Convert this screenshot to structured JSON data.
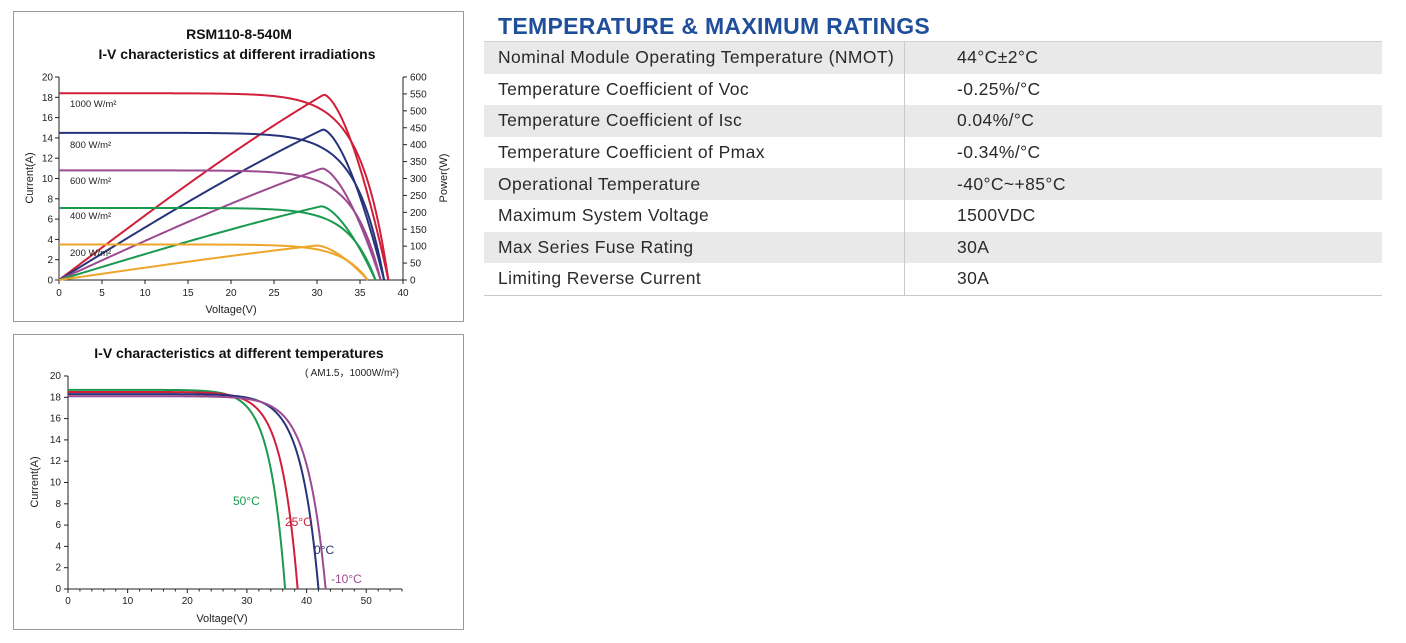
{
  "ratings": {
    "title": "TEMPERATURE & MAXIMUM RATINGS",
    "rows": [
      {
        "param": "Nominal Module Operating Temperature (NMOT)",
        "value": "44°C±2°C"
      },
      {
        "param": "Temperature Coefficient of Voc",
        "value": "-0.25%/°C"
      },
      {
        "param": "Temperature Coefficient of Isc",
        "value": "0.04%/°C"
      },
      {
        "param": "Temperature Coefficient of Pmax",
        "value": "-0.34%/°C"
      },
      {
        "param": "Operational Temperature",
        "value": "-40°C~+85°C"
      },
      {
        "param": "Maximum System Voltage",
        "value": "1500VDC"
      },
      {
        "param": "Max Series Fuse Rating",
        "value": "30A"
      },
      {
        "param": "Limiting Reverse Current",
        "value": "30A"
      }
    ]
  },
  "chart_data": [
    {
      "type": "line",
      "title": "RSM110-8-540M",
      "subtitle": "I-V characteristics at different irradiations",
      "xlabel": "Voltage(V)",
      "ylabel": "Current(A)",
      "y2label": "Power(W)",
      "xlim": [
        0,
        40
      ],
      "ylim": [
        0,
        20
      ],
      "y2lim": [
        0,
        600
      ],
      "xticks": [
        "0",
        "5",
        "10",
        "15",
        "20",
        "25",
        "30",
        "35",
        "40"
      ],
      "yticks": [
        "0",
        "2",
        "4",
        "6",
        "8",
        "10",
        "12",
        "14",
        "16",
        "18",
        "20"
      ],
      "y2ticks": [
        "0",
        "50",
        "100",
        "150",
        "200",
        "250",
        "300",
        "350",
        "400",
        "450",
        "500",
        "550",
        "600"
      ],
      "grid": false,
      "series": [
        {
          "name": "1000 W/m²",
          "color": "#d11f3a",
          "isc": 18.4,
          "voc": 38.3,
          "pmax": 548,
          "vmp": 30.8
        },
        {
          "name": "800 W/m²",
          "color": "#27337a",
          "isc": 14.5,
          "voc": 37.8,
          "pmax": 445,
          "vmp": 30.7
        },
        {
          "name": "600 W/m²",
          "color": "#9b4a91",
          "isc": 10.8,
          "voc": 37.4,
          "pmax": 330,
          "vmp": 30.6
        },
        {
          "name": "400 W/m²",
          "color": "#1a9a4e",
          "isc": 7.1,
          "voc": 36.8,
          "pmax": 218,
          "vmp": 30.5
        },
        {
          "name": "200 W/m²",
          "color": "#eda52a",
          "isc": 3.5,
          "voc": 35.9,
          "pmax": 102,
          "vmp": 30.0
        }
      ]
    },
    {
      "type": "line",
      "title": "I-V characteristics at different temperatures",
      "subtitle": "( AM1.5，1000W/m²)",
      "xlabel": "Voltage(V)",
      "ylabel": "Current(A)",
      "xlim": [
        0,
        56
      ],
      "ylim": [
        0,
        20
      ],
      "xticks": [
        "0",
        "10",
        "20",
        "30",
        "40",
        "50"
      ],
      "yticks": [
        "0",
        "2",
        "4",
        "6",
        "8",
        "10",
        "12",
        "14",
        "16",
        "18",
        "20"
      ],
      "grid": false,
      "series": [
        {
          "name": "50°C",
          "color": "#1a9a4e",
          "isc": 18.7,
          "voc": 36.4
        },
        {
          "name": "25°C",
          "color": "#d11f3a",
          "isc": 18.5,
          "voc": 38.5
        },
        {
          "name": "0°C",
          "color": "#27337a",
          "isc": 18.3,
          "voc": 42.0
        },
        {
          "name": "-10°C",
          "color": "#9b4a91",
          "isc": 18.1,
          "voc": 43.2
        }
      ]
    }
  ]
}
